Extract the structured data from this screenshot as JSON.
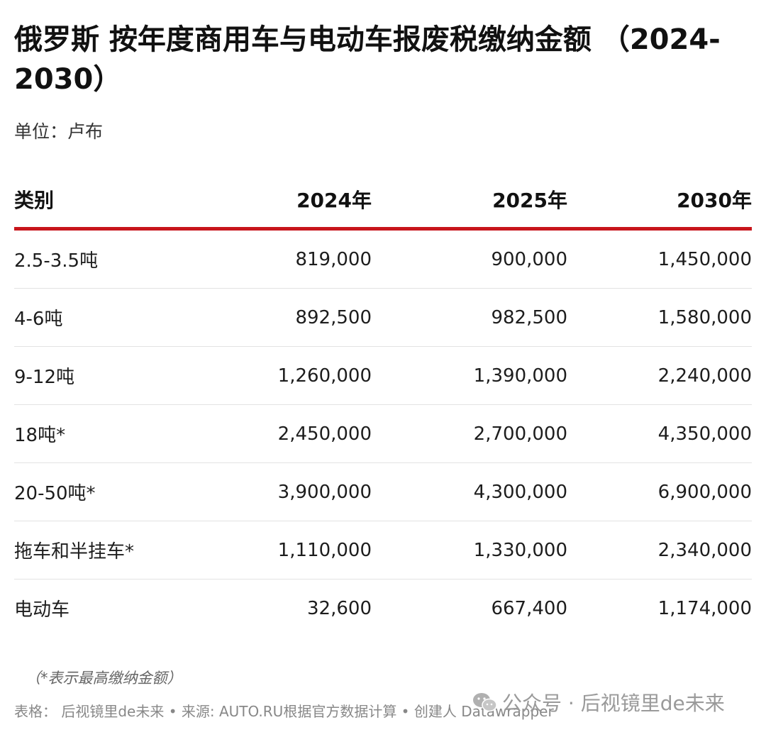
{
  "title": "俄罗斯 按年度商用车与电动车报废税缴纳金额 （2024-2030）",
  "subtitle": "单位：卢布",
  "chart_data": {
    "type": "table",
    "columns": [
      "类别",
      "2024年",
      "2025年",
      "2030年"
    ],
    "rows": [
      [
        "2.5-3.5吨",
        "819,000",
        "900,000",
        "1,450,000"
      ],
      [
        "4-6吨",
        "892,500",
        "982,500",
        "1,580,000"
      ],
      [
        "9-12吨",
        "1,260,000",
        "1,390,000",
        "2,240,000"
      ],
      [
        "18吨*",
        "2,450,000",
        "2,700,000",
        "4,350,000"
      ],
      [
        "20-50吨*",
        "3,900,000",
        "4,300,000",
        "6,900,000"
      ],
      [
        "拖车和半挂车*",
        "1,110,000",
        "1,330,000",
        "2,340,000"
      ],
      [
        "电动车",
        "32,600",
        "667,400",
        "1,174,000"
      ]
    ]
  },
  "note": "（*表示最高缴纳金额）",
  "source": "表格： 后视镜里de未来 • 来源: AUTO.RU根据官方数据计算 • 创建人 Datawrapper",
  "watermark": {
    "icon": "wechat-icon",
    "text": "公众号 · 后视镜里de未来"
  },
  "colors": {
    "accent": "#c8151b",
    "text": "#1d1d1d",
    "muted": "#888888"
  }
}
